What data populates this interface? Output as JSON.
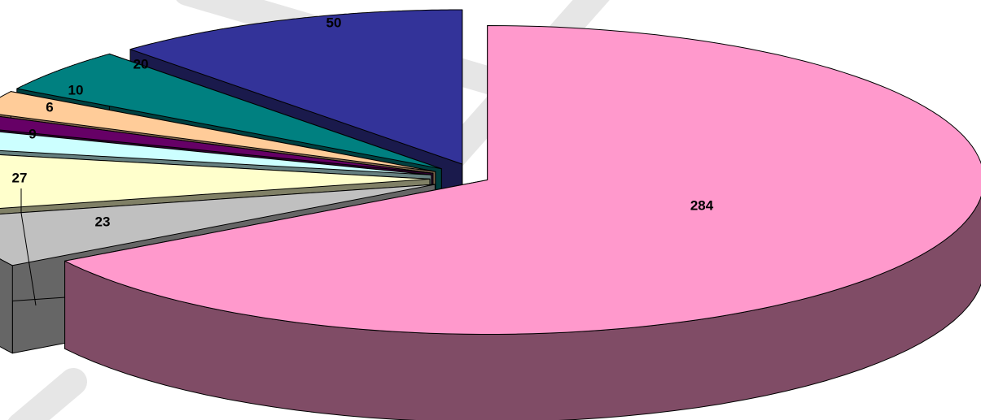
{
  "chart_data": {
    "type": "pie",
    "style": "3d-exploded",
    "title": "",
    "legend": "none",
    "slices": [
      {
        "value": 284,
        "label": "284",
        "top_color": "#FF99CC",
        "side_color": "#804C66"
      },
      {
        "value": 23,
        "label": "23",
        "top_color": "#C0C0C0",
        "side_color": "#666666"
      },
      {
        "value": 27,
        "label": "27",
        "top_color": "#FFFFCC",
        "side_color": "#808066"
      },
      {
        "value": 9,
        "label": "9",
        "top_color": "#CCFFFF",
        "side_color": "#668080"
      },
      {
        "value": 6,
        "label": "6",
        "top_color": "#660066",
        "side_color": "#330033"
      },
      {
        "value": 10,
        "label": "10",
        "top_color": "#FFCC99",
        "side_color": "#80664C"
      },
      {
        "value": 20,
        "label": "20",
        "top_color": "#008080",
        "side_color": "#004040"
      },
      {
        "value": 50,
        "label": "50",
        "top_color": "#333399",
        "side_color": "#1A1A4C"
      }
    ]
  }
}
